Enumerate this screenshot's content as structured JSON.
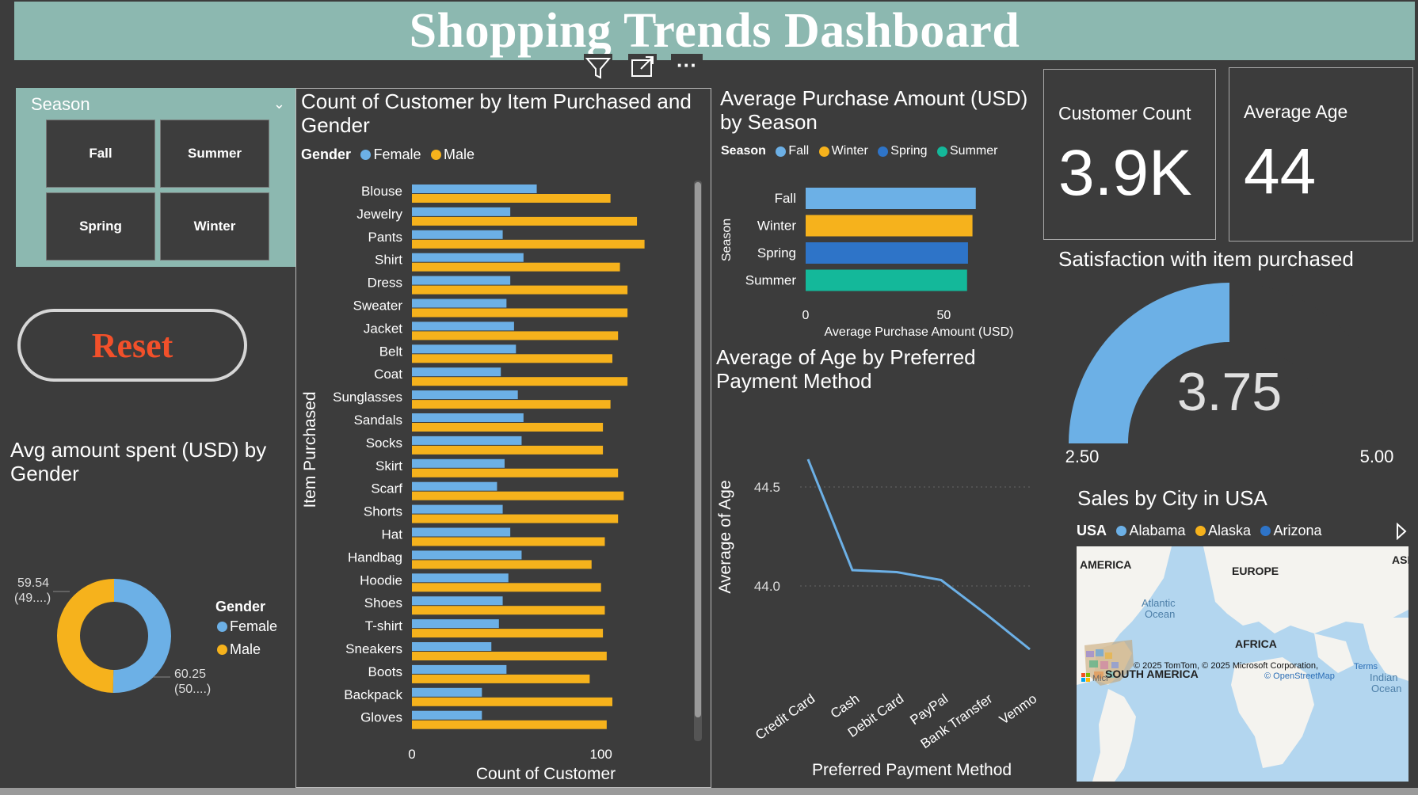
{
  "header": {
    "title": "Shopping Trends Dashboard"
  },
  "toolbar": {
    "filter_icon": "filter-icon",
    "focus_icon": "focus-mode-icon",
    "more_icon": "more-options-icon",
    "more_glyph": "···"
  },
  "slicer": {
    "title": "Season",
    "options": [
      "Fall",
      "Summer",
      "Spring",
      "Winter"
    ]
  },
  "reset": {
    "label": "Reset"
  },
  "gender_donut": {
    "title": "Avg amount spent (USD) by Gender",
    "legend_title": "Gender",
    "label_top_value": "59.54",
    "label_top_pct": "(49....)",
    "label_bottom_value": "60.25",
    "label_bottom_pct": "(50....)"
  },
  "item_chart": {
    "title": "Count of Customer by Item Purchased and Gender",
    "legend_title": "Gender",
    "xlabel": "Count of Customer",
    "ylabel": "Item Purchased"
  },
  "season_chart": {
    "title": "Average Purchase Amount (USD) by Season",
    "legend_title": "Season",
    "xlabel": "Average Purchase Amount (USD)",
    "ylabel": "Season"
  },
  "age_chart": {
    "title": "Average of Age by Preferred Payment Method",
    "xlabel": "Preferred Payment Method",
    "ylabel": "Average of Age"
  },
  "kpis": {
    "customer_count": {
      "label": "Customer Count",
      "value": "3.9K"
    },
    "average_age": {
      "label": "Average Age",
      "value": "44"
    }
  },
  "gauge": {
    "title": "Satisfaction with item purchased",
    "value_text": "3.75",
    "min_text": "2.50",
    "max_text": "5.00"
  },
  "map": {
    "title": "Sales by City in USA",
    "legend_title": "USA",
    "legend": [
      "Alabama",
      "Alaska",
      "Arizona"
    ],
    "legend_colors": [
      "#6cb0e6",
      "#f6b21c",
      "#2e74c8"
    ],
    "labels": {
      "america": "AMERICA",
      "europe": "EUROPE",
      "africa": "AFRICA",
      "south_america": "SOUTH AMERICA",
      "asia": "ASI",
      "atlantic1": "Atlantic",
      "atlantic2": "Ocean",
      "indian1": "Indian",
      "indian2": "Ocean"
    },
    "attribution": "© 2025 TomTom, © 2025 Microsoft Corporation,",
    "terms": "Terms",
    "osm": "© OpenStreetMap",
    "ms_logo_text": "Micr"
  },
  "colors": {
    "female": "#6cb0e6",
    "male": "#f6b21c",
    "fall": "#6cb0e6",
    "winter": "#f6b21c",
    "spring": "#2e74c8",
    "summer": "#14b89a",
    "banner": "#8cb8b0",
    "background": "#3c3c3c",
    "reset": "#f2502a"
  },
  "chart_data": [
    {
      "type": "bar",
      "orientation": "horizontal",
      "title": "Count of Customer by Item Purchased and Gender",
      "xlabel": "Count of Customer",
      "ylabel": "Item Purchased",
      "xlim": [
        0,
        155
      ],
      "xticks": [
        0,
        100
      ],
      "categories": [
        "Blouse",
        "Jewelry",
        "Pants",
        "Shirt",
        "Dress",
        "Sweater",
        "Jacket",
        "Belt",
        "Coat",
        "Sunglasses",
        "Sandals",
        "Socks",
        "Skirt",
        "Scarf",
        "Shorts",
        "Hat",
        "Handbag",
        "Hoodie",
        "Shoes",
        "T-shirt",
        "Sneakers",
        "Boots",
        "Backpack",
        "Gloves"
      ],
      "series": [
        {
          "name": "Female",
          "values": [
            66,
            52,
            48,
            59,
            52,
            50,
            54,
            55,
            47,
            56,
            59,
            58,
            49,
            45,
            48,
            52,
            58,
            51,
            48,
            46,
            42,
            50,
            37,
            37
          ]
        },
        {
          "name": "Male",
          "values": [
            105,
            119,
            123,
            110,
            114,
            114,
            109,
            106,
            114,
            105,
            101,
            101,
            109,
            112,
            109,
            102,
            95,
            100,
            102,
            101,
            103,
            94,
            106,
            103
          ]
        }
      ]
    },
    {
      "type": "bar",
      "orientation": "horizontal",
      "title": "Average Purchase Amount (USD) by Season",
      "xlabel": "Average Purchase Amount (USD)",
      "ylabel": "Season",
      "xlim": [
        0,
        90
      ],
      "xticks": [
        0,
        50
      ],
      "categories": [
        "Fall",
        "Winter",
        "Spring",
        "Summer"
      ],
      "series": [
        {
          "name": "Average Purchase Amount (USD)",
          "values": [
            61.56,
            60.36,
            58.74,
            58.41
          ]
        }
      ]
    },
    {
      "type": "line",
      "title": "Average of Age by Preferred Payment Method",
      "xlabel": "Preferred Payment Method",
      "ylabel": "Average of Age",
      "x": [
        "Credit Card",
        "Cash",
        "Debit Card",
        "PayPal",
        "Bank Transfer",
        "Venmo"
      ],
      "ylim": [
        43.6,
        44.8
      ],
      "yticks": [
        44.0,
        44.5
      ],
      "series": [
        {
          "name": "Average of Age",
          "values": [
            44.64,
            44.08,
            44.07,
            44.03,
            43.86,
            43.68
          ]
        }
      ]
    },
    {
      "type": "pie",
      "subtype": "donut",
      "title": "Avg amount spent (USD) by Gender",
      "categories": [
        "Female",
        "Male"
      ],
      "values": [
        60.25,
        59.54
      ]
    },
    {
      "type": "gauge",
      "title": "Satisfaction with item purchased",
      "value": 3.75,
      "min": 2.5,
      "max": 5.0
    }
  ]
}
